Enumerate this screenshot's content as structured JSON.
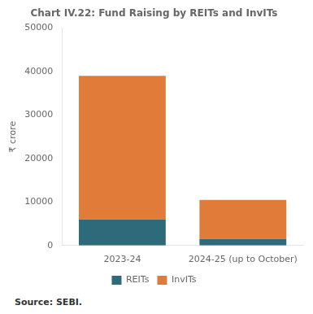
{
  "chart_data": {
    "type": "bar",
    "stacked": true,
    "title": "Chart IV.22: Fund Raising by REITs and InvITs",
    "categories": [
      "2023-24",
      "2024-25 (up to October)"
    ],
    "series": [
      {
        "name": "REITs",
        "color": "#2e6b7a",
        "values": [
          6000,
          1500
        ]
      },
      {
        "name": "InvITs",
        "color": "#e07b39",
        "values": [
          33000,
          9000
        ]
      }
    ],
    "ylabel": "₹ crore",
    "ylim": [
      0,
      50000
    ],
    "yticks": [
      0,
      10000,
      20000,
      30000,
      40000,
      50000
    ],
    "grid": false,
    "legend": "bottom",
    "annotation": "Source: SEBI."
  }
}
